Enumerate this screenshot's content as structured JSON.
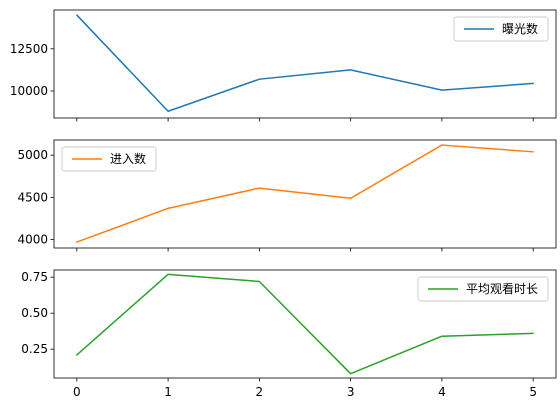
{
  "chart_data": [
    {
      "type": "line",
      "x": [
        0,
        1,
        2,
        3,
        4,
        5
      ],
      "series": [
        {
          "name": "曝光数",
          "values": [
            14500,
            8800,
            10700,
            11250,
            10050,
            10450
          ],
          "color": "#1f77b4"
        }
      ],
      "ylim": [
        8400,
        14800
      ],
      "yticks": [
        10000,
        12500
      ],
      "ytick_labels": [
        "10000",
        "12500"
      ],
      "legend": "top-right",
      "xlabels_shown": false
    },
    {
      "type": "line",
      "x": [
        0,
        1,
        2,
        3,
        4,
        5
      ],
      "series": [
        {
          "name": "进入数",
          "values": [
            3970,
            4370,
            4610,
            4490,
            5120,
            5040
          ],
          "color": "#ff7f0e"
        }
      ],
      "ylim": [
        3900,
        5180
      ],
      "yticks": [
        4000,
        4500,
        5000
      ],
      "ytick_labels": [
        "4000",
        "4500",
        "5000"
      ],
      "legend": "top-left",
      "xlabels_shown": false
    },
    {
      "type": "line",
      "x": [
        0,
        1,
        2,
        3,
        4,
        5
      ],
      "series": [
        {
          "name": "平均观看时长",
          "values": [
            0.21,
            0.77,
            0.72,
            0.08,
            0.34,
            0.36
          ],
          "color": "#2ca02c"
        }
      ],
      "ylim": [
        0.05,
        0.8
      ],
      "yticks": [
        0.25,
        0.5,
        0.75
      ],
      "ytick_labels": [
        "0.25",
        "0.50",
        "0.75"
      ],
      "legend": "top-right",
      "xlabels_shown": true,
      "xtick_labels": [
        "0",
        "1",
        "2",
        "3",
        "4",
        "5"
      ]
    }
  ]
}
